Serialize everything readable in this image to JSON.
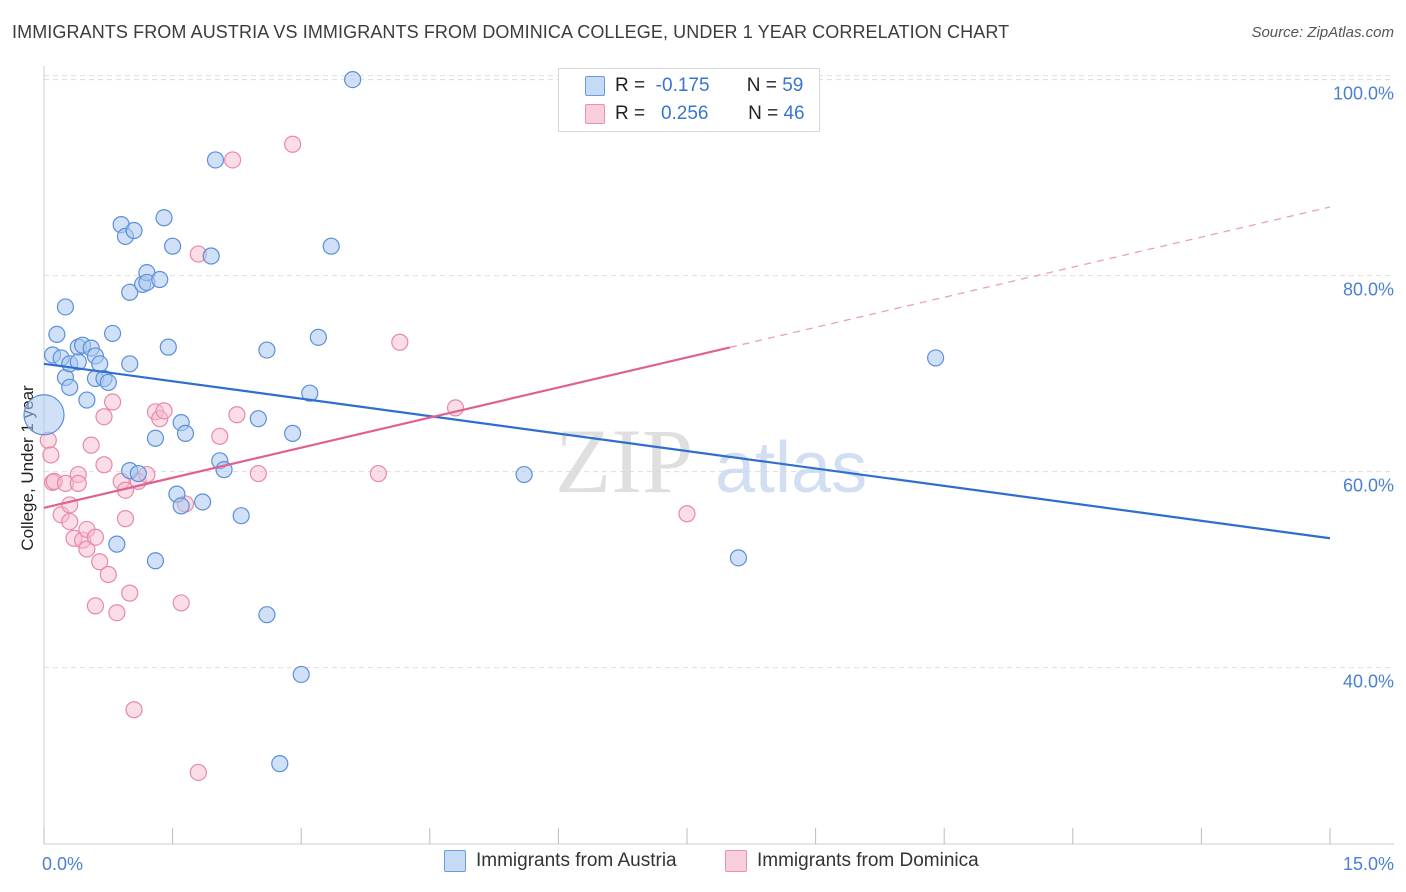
{
  "title": "IMMIGRANTS FROM AUSTRIA VS IMMIGRANTS FROM DOMINICA COLLEGE, UNDER 1 YEAR CORRELATION CHART",
  "source": "Source: ZipAtlas.com",
  "watermark": "ZIPatlas",
  "legend": {
    "r_label": "R =",
    "n_label": "N =",
    "austria": {
      "r": "-0.175",
      "n": "59"
    },
    "dominica": {
      "r": "0.256",
      "n": "46"
    }
  },
  "bottom_legend": {
    "austria": "Immigrants from Austria",
    "dominica": "Immigrants from Dominica"
  },
  "colors": {
    "austria_fill": "#aac8f0",
    "austria_stroke": "#5b8fd8",
    "austria_line": "#2f6ecf",
    "dominica_fill": "#f5bcd0",
    "dominica_stroke": "#e889a8",
    "dominica_line": "#e06090",
    "tick": "#4a7fd4",
    "grid": "#dddddd"
  },
  "chart_data": {
    "type": "scatter",
    "ylabel": "College, Under 1 year",
    "xlim": [
      0,
      15
    ],
    "ylim": [
      22,
      102
    ],
    "x_ticks": [
      {
        "v": 0,
        "label": "0.0%"
      },
      {
        "v": 15,
        "label": "15.0%"
      }
    ],
    "x_minor_ticks": [
      0,
      1.5,
      3,
      4.5,
      6,
      7.5,
      9,
      10.5,
      12,
      13.5,
      15
    ],
    "y_ticks": [
      {
        "v": 40,
        "label": "40.0%"
      },
      {
        "v": 60,
        "label": "60.0%"
      },
      {
        "v": 80,
        "label": "80.0%"
      },
      {
        "v": 100,
        "label": "100.0%"
      }
    ],
    "grid": true,
    "series": [
      {
        "name": "Immigrants from Austria",
        "trend": {
          "x1": 0,
          "y1": 71,
          "x2": 15,
          "y2": 53.2,
          "dashed_from": null
        },
        "points": [
          [
            0.1,
            71.9
          ],
          [
            0.2,
            71.6
          ],
          [
            0.15,
            74.0
          ],
          [
            0.25,
            69.6
          ],
          [
            0.25,
            76.8
          ],
          [
            0.3,
            68.6
          ],
          [
            0.3,
            71.0
          ],
          [
            0.4,
            72.7
          ],
          [
            0.45,
            72.9
          ],
          [
            0.5,
            67.3
          ],
          [
            0.55,
            72.6
          ],
          [
            0.6,
            71.8
          ],
          [
            0.65,
            71.0
          ],
          [
            0.6,
            69.5
          ],
          [
            0.7,
            69.5
          ],
          [
            0.75,
            69.1
          ],
          [
            0.8,
            74.1
          ],
          [
            0.9,
            85.2
          ],
          [
            0.95,
            84.0
          ],
          [
            1.0,
            78.3
          ],
          [
            1.0,
            71.0
          ],
          [
            1.05,
            84.6
          ],
          [
            1.15,
            79.1
          ],
          [
            1.2,
            80.3
          ],
          [
            1.2,
            79.3
          ],
          [
            1.35,
            79.6
          ],
          [
            1.4,
            85.9
          ],
          [
            1.45,
            72.7
          ],
          [
            1.5,
            83.0
          ],
          [
            1.6,
            65.0
          ],
          [
            1.65,
            63.9
          ],
          [
            1.55,
            57.7
          ],
          [
            1.6,
            56.5
          ],
          [
            1.85,
            56.9
          ],
          [
            1.95,
            82.0
          ],
          [
            2.0,
            91.8
          ],
          [
            2.05,
            61.1
          ],
          [
            2.1,
            60.2
          ],
          [
            2.3,
            55.5
          ],
          [
            2.5,
            65.4
          ],
          [
            2.6,
            72.4
          ],
          [
            2.6,
            45.4
          ],
          [
            2.9,
            63.9
          ],
          [
            3.0,
            39.3
          ],
          [
            3.1,
            68.0
          ],
          [
            3.2,
            73.7
          ],
          [
            3.35,
            83.0
          ],
          [
            3.6,
            100.0
          ],
          [
            2.75,
            30.2
          ],
          [
            1.3,
            50.9
          ],
          [
            0.85,
            52.6
          ],
          [
            1.0,
            60.1
          ],
          [
            1.1,
            59.8
          ],
          [
            1.3,
            63.4
          ],
          [
            0.0,
            65.8
          ],
          [
            5.6,
            59.7
          ],
          [
            8.1,
            51.2
          ],
          [
            10.4,
            71.6
          ],
          [
            0.4,
            71.2
          ]
        ]
      },
      {
        "name": "Immigrants from Dominica",
        "trend": {
          "x1": 0,
          "y1": 56.3,
          "x2": 15,
          "y2": 87.0,
          "dashed_from": 8.0
        },
        "points": [
          [
            0.05,
            63.2
          ],
          [
            0.08,
            61.7
          ],
          [
            0.1,
            58.9
          ],
          [
            0.12,
            59.0
          ],
          [
            0.2,
            55.6
          ],
          [
            0.25,
            58.8
          ],
          [
            0.3,
            56.6
          ],
          [
            0.3,
            54.9
          ],
          [
            0.35,
            53.2
          ],
          [
            0.4,
            59.7
          ],
          [
            0.45,
            53.0
          ],
          [
            0.5,
            54.1
          ],
          [
            0.5,
            52.1
          ],
          [
            0.55,
            62.7
          ],
          [
            0.6,
            46.3
          ],
          [
            0.6,
            53.3
          ],
          [
            0.65,
            50.8
          ],
          [
            0.7,
            65.6
          ],
          [
            0.7,
            60.7
          ],
          [
            0.75,
            49.5
          ],
          [
            0.8,
            67.1
          ],
          [
            0.85,
            45.6
          ],
          [
            0.9,
            59.0
          ],
          [
            0.95,
            58.1
          ],
          [
            0.95,
            55.2
          ],
          [
            1.0,
            47.6
          ],
          [
            1.05,
            35.7
          ],
          [
            1.1,
            59.0
          ],
          [
            1.2,
            59.7
          ],
          [
            1.3,
            66.1
          ],
          [
            1.35,
            65.4
          ],
          [
            1.4,
            66.2
          ],
          [
            1.6,
            46.6
          ],
          [
            1.65,
            56.7
          ],
          [
            1.8,
            82.2
          ],
          [
            1.8,
            29.3
          ],
          [
            2.05,
            63.6
          ],
          [
            2.2,
            91.8
          ],
          [
            2.25,
            65.8
          ],
          [
            2.5,
            59.8
          ],
          [
            2.9,
            93.4
          ],
          [
            3.9,
            59.8
          ],
          [
            4.15,
            73.2
          ],
          [
            4.8,
            66.5
          ],
          [
            7.5,
            55.7
          ],
          [
            0.4,
            58.8
          ]
        ]
      }
    ]
  }
}
